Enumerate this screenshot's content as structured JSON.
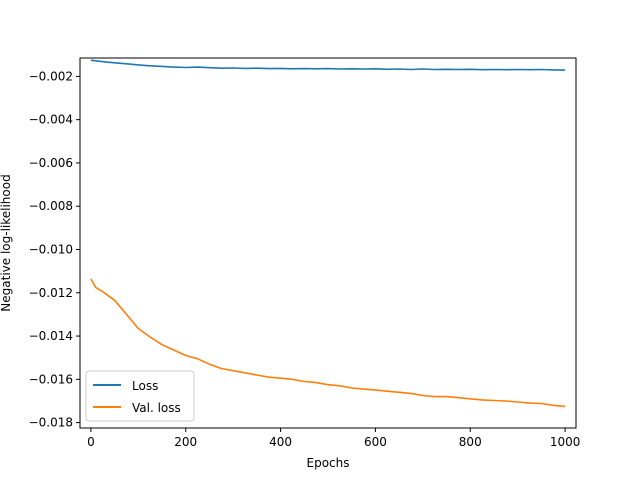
{
  "chart_data": {
    "type": "line",
    "xlabel": "Epochs",
    "ylabel": "Negative log-likelihood",
    "xlim": [
      -23,
      1023
    ],
    "ylim": [
      -0.01825,
      -0.00115
    ],
    "x_ticks": [
      0,
      200,
      400,
      600,
      800,
      1000
    ],
    "y_ticks": [
      -0.018,
      -0.016,
      -0.014,
      -0.012,
      -0.01,
      -0.008,
      -0.006,
      -0.004,
      -0.002
    ],
    "x_tick_labels": [
      "0",
      "200",
      "400",
      "600",
      "800",
      "1000"
    ],
    "y_tick_labels": [
      "−0.018",
      "−0.016",
      "−0.014",
      "−0.012",
      "−0.010",
      "−0.008",
      "−0.006",
      "−0.004",
      "−0.002"
    ],
    "grid": false,
    "legend_position": "lower-left",
    "series": [
      {
        "name": "Loss",
        "color": "#1f77b4",
        "x": [
          0,
          25,
          50,
          75,
          100,
          125,
          150,
          175,
          200,
          225,
          250,
          275,
          300,
          325,
          350,
          375,
          400,
          425,
          450,
          475,
          500,
          525,
          550,
          575,
          600,
          625,
          650,
          675,
          700,
          725,
          750,
          775,
          800,
          825,
          850,
          875,
          900,
          925,
          950,
          975,
          1000
        ],
        "values": [
          -0.00125,
          -0.00132,
          -0.00137,
          -0.00142,
          -0.00147,
          -0.00151,
          -0.00154,
          -0.00157,
          -0.00159,
          -0.00157,
          -0.0016,
          -0.00162,
          -0.00161,
          -0.00163,
          -0.00162,
          -0.00164,
          -0.00163,
          -0.00165,
          -0.00164,
          -0.00165,
          -0.00164,
          -0.00166,
          -0.00165,
          -0.00166,
          -0.00165,
          -0.00167,
          -0.00166,
          -0.00168,
          -0.00166,
          -0.00168,
          -0.00167,
          -0.00168,
          -0.00167,
          -0.00169,
          -0.00168,
          -0.00169,
          -0.00168,
          -0.00169,
          -0.00168,
          -0.0017,
          -0.00171
        ]
      },
      {
        "name": "Val. loss",
        "color": "#ff7f0e",
        "x": [
          0,
          10,
          25,
          50,
          75,
          100,
          125,
          150,
          175,
          200,
          225,
          250,
          275,
          300,
          325,
          350,
          375,
          400,
          425,
          450,
          475,
          500,
          525,
          550,
          575,
          600,
          625,
          650,
          675,
          700,
          725,
          750,
          775,
          800,
          825,
          850,
          875,
          900,
          925,
          950,
          975,
          1000
        ],
        "values": [
          -0.01135,
          -0.01175,
          -0.01195,
          -0.01235,
          -0.013,
          -0.01365,
          -0.01405,
          -0.0144,
          -0.01465,
          -0.0149,
          -0.01505,
          -0.0153,
          -0.0155,
          -0.0156,
          -0.0157,
          -0.0158,
          -0.0159,
          -0.01595,
          -0.016,
          -0.0161,
          -0.01615,
          -0.01625,
          -0.0163,
          -0.0164,
          -0.01645,
          -0.0165,
          -0.01655,
          -0.0166,
          -0.01665,
          -0.01675,
          -0.0168,
          -0.0168,
          -0.01685,
          -0.0169,
          -0.01695,
          -0.01698,
          -0.017,
          -0.01705,
          -0.0171,
          -0.01712,
          -0.0172,
          -0.01725
        ]
      }
    ]
  }
}
